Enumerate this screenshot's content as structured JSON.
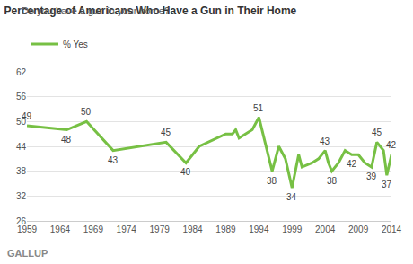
{
  "chart_data": {
    "type": "line",
    "title": "Percentage of Americans Who Have a Gun in Their Home",
    "subtitle": "Do you have a gun in your home?",
    "source": "GALLUP",
    "legend": "top left",
    "grid": true,
    "x": [
      1959,
      1965,
      1968,
      1972,
      1980,
      1983,
      1985,
      1989,
      1990,
      1990.5,
      1991,
      1992,
      1993,
      1994,
      1996,
      1997,
      1998,
      1999,
      2000,
      2000.5,
      2002,
      2003,
      2004,
      2004.5,
      2005,
      2006,
      2007,
      2008,
      2009,
      2010,
      2011,
      2011.8,
      2012.8,
      2013.3,
      2014
    ],
    "series": [
      {
        "name": "% Yes",
        "color": "#77c044",
        "values": [
          49,
          48,
          50,
          43,
          45,
          40,
          44,
          47,
          47,
          48,
          46,
          47,
          48,
          51,
          38,
          44,
          41,
          34,
          42,
          39,
          40,
          41,
          43,
          40,
          38,
          40,
          43,
          42,
          42,
          40,
          39,
          45,
          43,
          37,
          42
        ]
      }
    ],
    "annotations": [
      {
        "x": 1959,
        "y": 49,
        "text": "49"
      },
      {
        "x": 1965,
        "y": 48,
        "text": "48"
      },
      {
        "x": 1968,
        "y": 50,
        "text": "50"
      },
      {
        "x": 1972,
        "y": 43,
        "text": "43"
      },
      {
        "x": 1980,
        "y": 45,
        "text": "45"
      },
      {
        "x": 1983,
        "y": 40,
        "text": "40"
      },
      {
        "x": 1994,
        "y": 51,
        "text": "51"
      },
      {
        "x": 1996,
        "y": 38,
        "text": "38"
      },
      {
        "x": 1999,
        "y": 34,
        "text": "34"
      },
      {
        "x": 2004,
        "y": 43,
        "text": "43"
      },
      {
        "x": 2005,
        "y": 38,
        "text": "38"
      },
      {
        "x": 2008,
        "y": 42,
        "text": "42"
      },
      {
        "x": 2011,
        "y": 39,
        "text": "39"
      },
      {
        "x": 2011.8,
        "y": 45,
        "text": "45"
      },
      {
        "x": 2013.3,
        "y": 37,
        "text": "37"
      },
      {
        "x": 2014,
        "y": 42,
        "text": "42"
      }
    ],
    "xlim": [
      1959,
      2014
    ],
    "xticks": [
      1959,
      1964,
      1969,
      1974,
      1979,
      1984,
      1989,
      1994,
      1999,
      2004,
      2009,
      2014
    ],
    "ylim": [
      26,
      62
    ],
    "yticks": [
      26,
      32,
      38,
      44,
      50,
      56,
      62
    ]
  }
}
